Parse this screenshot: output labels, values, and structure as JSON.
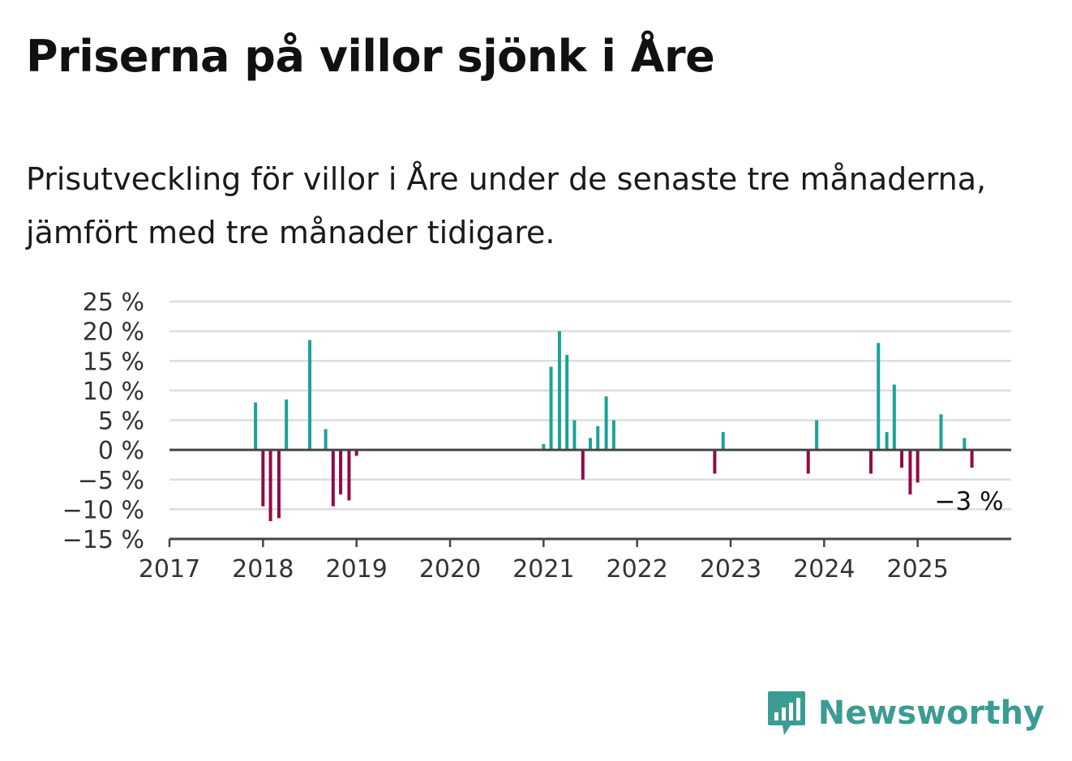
{
  "title": "Priserna på villor sjönk i Åre",
  "subtitle": "Prisutveckling för villor i Åre under de senaste tre månaderna, jämfört med tre månader tidigare.",
  "brand": {
    "name": "Newsworthy",
    "icon": "newsworthy-logo-icon"
  },
  "colors": {
    "positive": "#1aa39a",
    "negative": "#930a45",
    "grid": "#dddddd",
    "axis": "#444444"
  },
  "chart_data": {
    "type": "bar",
    "title": "",
    "xlabel": "",
    "ylabel": "",
    "x_domain": [
      2017,
      2026
    ],
    "ylim": [
      -15,
      25
    ],
    "yticks": [
      25,
      20,
      15,
      10,
      5,
      0,
      -5,
      -10,
      -15
    ],
    "ytick_labels": [
      "25 %",
      "20 %",
      "15 %",
      "10 %",
      "5 %",
      "0 %",
      "−5 %",
      "−10 %",
      "−15 %"
    ],
    "xticks": [
      2017,
      2018,
      2019,
      2020,
      2021,
      2022,
      2023,
      2024,
      2025
    ],
    "xtick_labels": [
      "2017",
      "2018",
      "2019",
      "2020",
      "2021",
      "2022",
      "2023",
      "2024",
      "2025"
    ],
    "grid": true,
    "annotation": {
      "text": "−3 %",
      "x": 2025.58,
      "y": -3
    },
    "x": [
      2017.92,
      2018.0,
      2018.08,
      2018.17,
      2018.25,
      2018.5,
      2018.67,
      2018.75,
      2018.83,
      2018.92,
      2019.0,
      2021.0,
      2021.08,
      2021.17,
      2021.25,
      2021.33,
      2021.42,
      2021.5,
      2021.58,
      2021.67,
      2021.75,
      2022.83,
      2022.92,
      2023.83,
      2023.92,
      2024.5,
      2024.58,
      2024.67,
      2024.75,
      2024.83,
      2024.92,
      2025.0,
      2025.25,
      2025.5,
      2025.58
    ],
    "values": [
      8,
      -9.5,
      -12,
      -11.5,
      8.5,
      18.5,
      3.5,
      -9.5,
      -7.5,
      -8.5,
      -1,
      1,
      14,
      20,
      16,
      5,
      -5,
      2,
      4,
      9,
      5,
      -4,
      3,
      -4,
      5,
      -4,
      18,
      3,
      11,
      -3,
      -7.5,
      -5.5,
      6,
      2,
      -3
    ]
  }
}
